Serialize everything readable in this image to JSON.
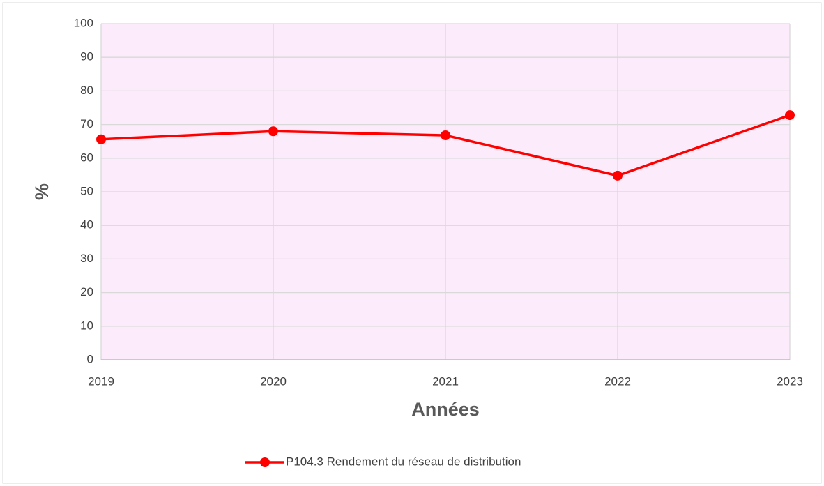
{
  "chart_data": {
    "type": "line",
    "x": [
      2019,
      2020,
      2021,
      2022,
      2023
    ],
    "xlim": [
      2019,
      2023
    ],
    "xticks": [
      2019,
      2020,
      2021,
      2022,
      2023
    ],
    "ylim": [
      0,
      100
    ],
    "yticks": [
      0,
      10,
      20,
      30,
      40,
      50,
      60,
      70,
      80,
      90,
      100
    ],
    "x_label": "Années",
    "y_label": "%",
    "grid": true,
    "legend": "bottom",
    "background": "#fcebfb",
    "series": [
      {
        "name": "P104.3 Rendement du réseau de distribution",
        "color": "#ff0000",
        "values": [
          65.6,
          68.0,
          66.8,
          54.8,
          72.8
        ]
      }
    ]
  }
}
